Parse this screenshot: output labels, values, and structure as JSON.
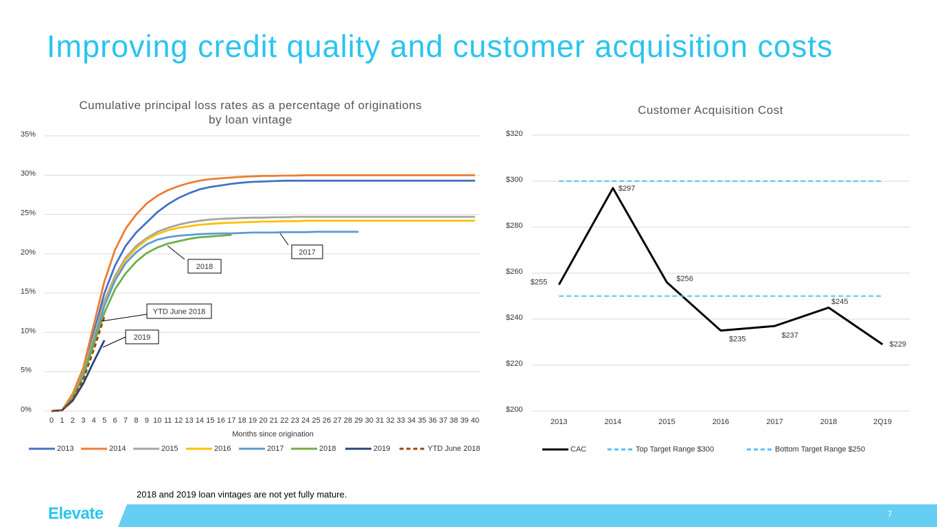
{
  "title": "Improving credit quality and customer acquisition costs",
  "footnote": "2018 and 2019 loan vintages are not yet fully mature.",
  "logo": "Elevate",
  "page_number": "7",
  "chart_data": [
    {
      "type": "line",
      "title": "Cumulative principal loss rates as a percentage of originations by loan vintage",
      "x_label": "Months since origination",
      "x": [
        0,
        1,
        2,
        3,
        4,
        5,
        6,
        7,
        8,
        9,
        10,
        11,
        12,
        13,
        14,
        15,
        16,
        17,
        18,
        19,
        20,
        21,
        22,
        23,
        24,
        25,
        26,
        27,
        28,
        29,
        30,
        31,
        32,
        33,
        34,
        35,
        36,
        37,
        38,
        39,
        40
      ],
      "xlim": [
        0,
        40
      ],
      "ylim": [
        0,
        35
      ],
      "yticks": [
        {
          "value": 0,
          "label": "0%"
        },
        {
          "value": 5,
          "label": "5%"
        },
        {
          "value": 10,
          "label": "10%"
        },
        {
          "value": 15,
          "label": "15%"
        },
        {
          "value": 20,
          "label": "20%"
        },
        {
          "value": 25,
          "label": "25%"
        },
        {
          "value": 30,
          "label": "30%"
        },
        {
          "value": 35,
          "label": "35%"
        }
      ],
      "grid": true,
      "annotations": [
        "2017",
        "2018",
        "YTD June 2018",
        "2019"
      ],
      "series": [
        {
          "name": "2013",
          "color": "#4472c4",
          "values": [
            0,
            0.1,
            2,
            5,
            10,
            15,
            18.5,
            21,
            22.7,
            24,
            25.3,
            26.3,
            27.1,
            27.7,
            28.2,
            28.5,
            28.7,
            28.9,
            29.05,
            29.15,
            29.2,
            29.25,
            29.3,
            29.3,
            29.3,
            29.3,
            29.3,
            29.3,
            29.3,
            29.3,
            29.3,
            29.3,
            29.3,
            29.3,
            29.3,
            29.3,
            29.3,
            29.3,
            29.3,
            29.3,
            29.3
          ]
        },
        {
          "name": "2014",
          "color": "#ed7d31",
          "values": [
            0,
            0.1,
            2.2,
            5.5,
            11,
            16.5,
            20.5,
            23.2,
            25,
            26.4,
            27.4,
            28.1,
            28.6,
            29,
            29.3,
            29.5,
            29.6,
            29.7,
            29.8,
            29.85,
            29.9,
            29.9,
            29.95,
            29.95,
            30,
            30,
            30,
            30,
            30,
            30,
            30,
            30,
            30,
            30,
            30,
            30,
            30,
            30,
            30,
            30,
            30
          ]
        },
        {
          "name": "2015",
          "color": "#a5a5a5",
          "values": [
            0,
            0.1,
            1.8,
            4.8,
            9.5,
            14,
            17.2,
            19.5,
            21,
            22,
            22.8,
            23.3,
            23.7,
            24,
            24.2,
            24.35,
            24.45,
            24.5,
            24.55,
            24.6,
            24.6,
            24.65,
            24.65,
            24.7,
            24.7,
            24.7,
            24.7,
            24.7,
            24.7,
            24.7,
            24.7,
            24.7,
            24.7,
            24.7,
            24.7,
            24.7,
            24.7,
            24.7,
            24.7,
            24.7,
            24.7
          ]
        },
        {
          "name": "2016",
          "color": "#ffc000",
          "values": [
            0,
            0.1,
            1.8,
            4.7,
            9.2,
            13.6,
            16.8,
            19.2,
            20.7,
            21.8,
            22.5,
            23,
            23.3,
            23.5,
            23.7,
            23.8,
            23.9,
            23.95,
            24,
            24.05,
            24.1,
            24.1,
            24.15,
            24.15,
            24.2,
            24.2,
            24.2,
            24.2,
            24.2,
            24.2,
            24.2,
            24.2,
            24.2,
            24.2,
            24.2,
            24.2,
            24.2,
            24.2,
            24.2,
            24.2,
            24.2
          ]
        },
        {
          "name": "2017",
          "color": "#5b9bd5",
          "values": [
            0,
            0.1,
            1.7,
            4.6,
            9,
            13.4,
            16.6,
            18.8,
            20.2,
            21.2,
            21.8,
            22.1,
            22.3,
            22.4,
            22.5,
            22.55,
            22.6,
            22.6,
            22.65,
            22.7,
            22.7,
            22.7,
            22.75,
            22.75,
            22.75,
            22.8,
            22.8,
            22.8,
            22.8,
            22.8,
            null,
            null,
            null,
            null,
            null,
            null,
            null,
            null,
            null,
            null,
            null
          ]
        },
        {
          "name": "2018",
          "color": "#70ad47",
          "values": [
            0,
            0.1,
            1.6,
            4.4,
            8.5,
            12.5,
            15.5,
            17.5,
            19,
            20.1,
            20.8,
            21.3,
            21.6,
            21.9,
            22.1,
            22.2,
            22.3,
            22.4,
            null,
            null,
            null,
            null,
            null,
            null,
            null,
            null,
            null,
            null,
            null,
            null,
            null,
            null,
            null,
            null,
            null,
            null,
            null,
            null,
            null,
            null,
            null
          ]
        },
        {
          "name": "2019",
          "color": "#264478",
          "values": [
            0,
            0.1,
            1.3,
            3.5,
            6.3,
            9,
            null,
            null,
            null,
            null,
            null,
            null,
            null,
            null,
            null,
            null,
            null,
            null,
            null,
            null,
            null,
            null,
            null,
            null,
            null,
            null,
            null,
            null,
            null,
            null,
            null,
            null,
            null,
            null,
            null,
            null,
            null,
            null,
            null,
            null,
            null
          ]
        },
        {
          "name": "YTD June 2018",
          "color": "#9e480e",
          "dashed": true,
          "values": [
            0,
            0.1,
            1.5,
            4,
            7.8,
            12,
            null,
            null,
            null,
            null,
            null,
            null,
            null,
            null,
            null,
            null,
            null,
            null,
            null,
            null,
            null,
            null,
            null,
            null,
            null,
            null,
            null,
            null,
            null,
            null,
            null,
            null,
            null,
            null,
            null,
            null,
            null,
            null,
            null,
            null,
            null
          ]
        }
      ]
    },
    {
      "type": "line",
      "title": "Customer Acquisition Cost",
      "categories": [
        "2013",
        "2014",
        "2015",
        "2016",
        "2017",
        "2018",
        "2Q19"
      ],
      "ylim": [
        200,
        320
      ],
      "yticks": [
        {
          "value": 200,
          "label": "$200"
        },
        {
          "value": 220,
          "label": "$220"
        },
        {
          "value": 240,
          "label": "$240"
        },
        {
          "value": 260,
          "label": "$260"
        },
        {
          "value": 280,
          "label": "$280"
        },
        {
          "value": 300,
          "label": "$300"
        },
        {
          "value": 320,
          "label": "$320"
        }
      ],
      "grid": true,
      "series": [
        {
          "name": "CAC",
          "color": "#000000",
          "values": [
            255,
            297,
            256,
            235,
            237,
            245,
            229
          ],
          "value_labels": [
            "$255",
            "$297",
            "$256",
            "$235",
            "$237",
            "$245",
            "$229"
          ]
        },
        {
          "name": "Top Target Range $300",
          "color": "#4fc3f7",
          "dashed": true,
          "values": [
            300,
            300,
            300,
            300,
            300,
            300,
            300
          ]
        },
        {
          "name": "Bottom Target Range $250",
          "color": "#4fc3f7",
          "dashed": true,
          "values": [
            250,
            250,
            250,
            250,
            250,
            250,
            250
          ]
        }
      ]
    }
  ]
}
